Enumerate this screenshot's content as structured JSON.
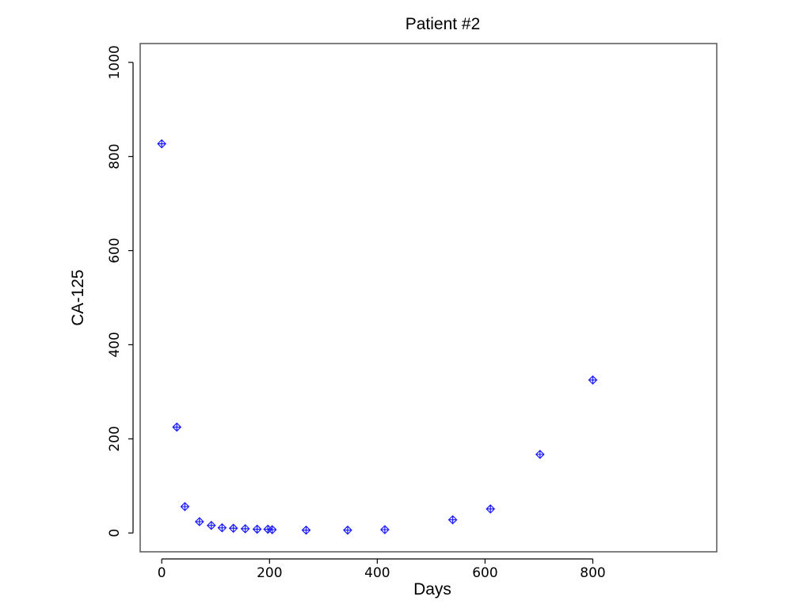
{
  "chart_data": {
    "type": "scatter",
    "title": "Patient #2",
    "xlabel": "Days",
    "ylabel": "CA-125",
    "xlim": [
      -40,
      1030
    ],
    "ylim": [
      -40,
      1040
    ],
    "xticks": [
      0,
      200,
      400,
      600,
      800
    ],
    "yticks": [
      0,
      200,
      400,
      600,
      800,
      1000
    ],
    "grid": false,
    "legend": "none",
    "marker": "diamond-plus",
    "color": "#1a1aff",
    "series": [
      {
        "x": [
          0,
          28,
          43,
          70,
          92,
          112,
          133,
          155,
          177,
          197,
          205,
          268,
          345,
          414,
          540,
          610,
          702,
          800
        ],
        "y": [
          827,
          225,
          56,
          24,
          16,
          11,
          10,
          9,
          8,
          8,
          7,
          6,
          6,
          7,
          28,
          51,
          167,
          325
        ]
      }
    ]
  }
}
